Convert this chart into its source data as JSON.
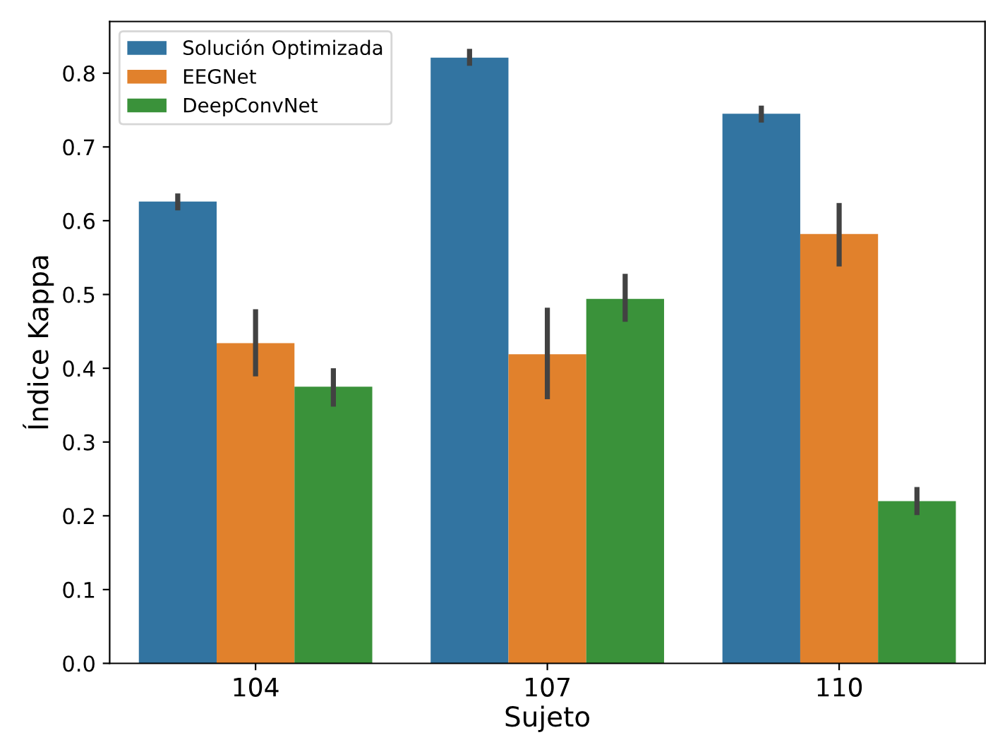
{
  "chart_data": {
    "type": "bar",
    "xlabel": "Sujeto",
    "ylabel": "Índice Kappa",
    "categories": [
      "104",
      "107",
      "110"
    ],
    "series": [
      {
        "name": "Solución Optimizada",
        "color": "#3274a1",
        "values": [
          0.626,
          0.821,
          0.745
        ],
        "errors": [
          [
            0.614,
            0.637
          ],
          [
            0.81,
            0.833
          ],
          [
            0.733,
            0.756
          ]
        ]
      },
      {
        "name": "EEGNet",
        "color": "#e1812c",
        "values": [
          0.434,
          0.419,
          0.582
        ],
        "errors": [
          [
            0.389,
            0.48
          ],
          [
            0.358,
            0.482
          ],
          [
            0.538,
            0.624
          ]
        ]
      },
      {
        "name": "DeepConvNet",
        "color": "#3a923a",
        "values": [
          0.375,
          0.494,
          0.22
        ],
        "errors": [
          [
            0.348,
            0.4
          ],
          [
            0.463,
            0.528
          ],
          [
            0.201,
            0.239
          ]
        ]
      }
    ],
    "ylim": [
      0,
      0.87
    ],
    "yticks": [
      {
        "value": 0,
        "label": "0.0"
      },
      0.1,
      0.2,
      0.3,
      0.4,
      0.5,
      0.6,
      0.7,
      0.8
    ],
    "grid": false,
    "legend": "top left"
  }
}
